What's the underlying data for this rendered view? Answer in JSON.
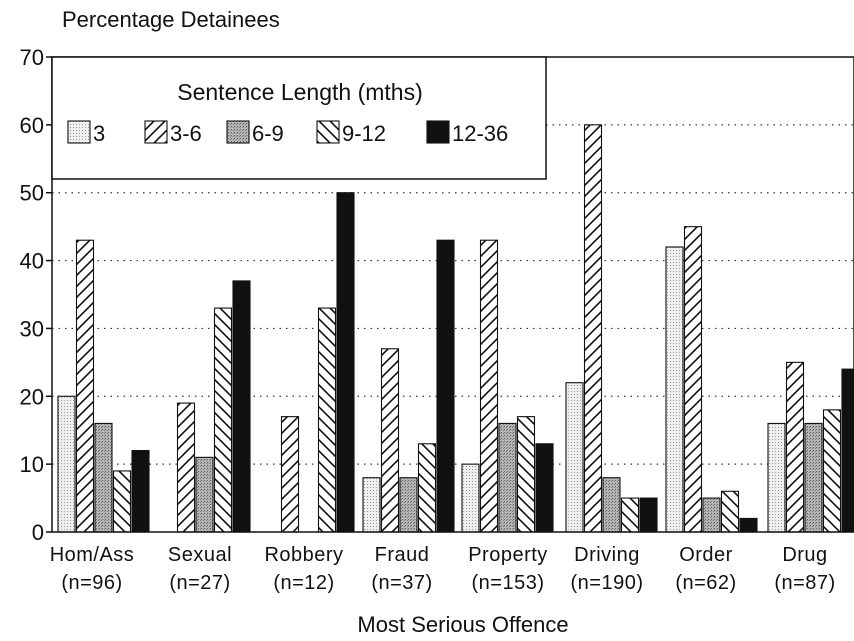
{
  "chart_data": {
    "type": "bar",
    "ylabel": "Percentage Detainees",
    "xlabel": "Most Serious Offence",
    "ylim": [
      0,
      70
    ],
    "yticks": [
      0,
      10,
      20,
      30,
      40,
      50,
      60,
      70
    ],
    "grid": "horizontal dotted",
    "legend_title": "Sentence Length (mths)",
    "legend_position": "top-left",
    "categories": [
      {
        "name": "Hom/Ass",
        "n": "(n=96)"
      },
      {
        "name": "Sexual",
        "n": "(n=27)"
      },
      {
        "name": "Robbery",
        "n": "(n=12)"
      },
      {
        "name": "Fraud",
        "n": "(n=37)"
      },
      {
        "name": "Property",
        "n": "(n=153)"
      },
      {
        "name": "Driving",
        "n": "(n=190)"
      },
      {
        "name": "Order",
        "n": "(n=62)"
      },
      {
        "name": "Drug",
        "n": "(n=87)"
      }
    ],
    "series": [
      {
        "name": "3",
        "pattern": "dotted-light",
        "values": [
          20,
          0,
          0,
          8,
          10,
          22,
          42,
          16
        ]
      },
      {
        "name": "3-6",
        "pattern": "forward-hatch",
        "values": [
          43,
          19,
          17,
          27,
          43,
          60,
          45,
          25
        ]
      },
      {
        "name": "6-9",
        "pattern": "dotted-medium",
        "values": [
          16,
          11,
          0,
          8,
          16,
          8,
          5,
          16
        ]
      },
      {
        "name": "9-12",
        "pattern": "back-hatch",
        "values": [
          9,
          33,
          33,
          13,
          17,
          5,
          6,
          18
        ]
      },
      {
        "name": "12-36",
        "pattern": "solid-black",
        "values": [
          12,
          37,
          50,
          43,
          13,
          5,
          2,
          24
        ]
      }
    ]
  }
}
